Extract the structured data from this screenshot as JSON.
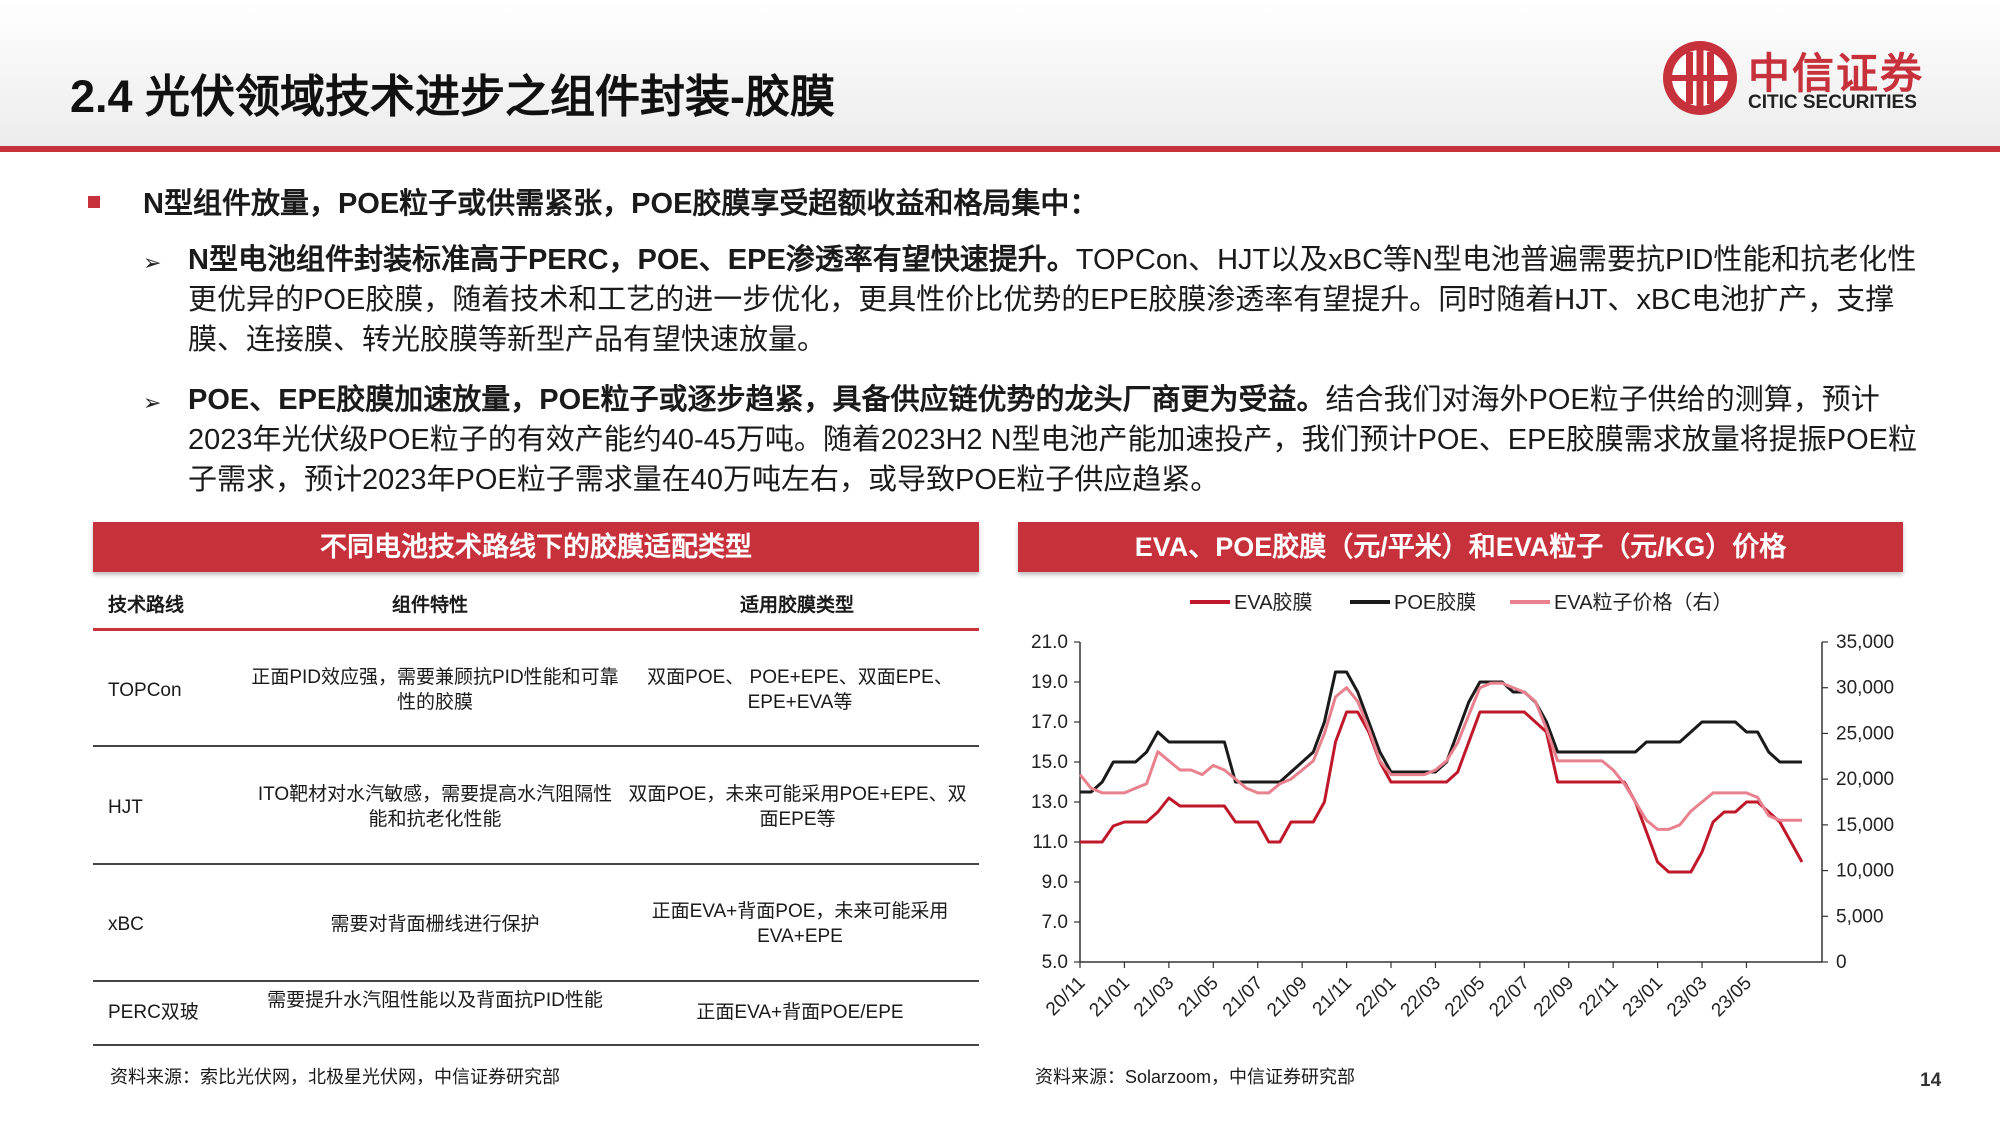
{
  "header": {
    "title": "2.4 光伏领域技术进步之组件封装-胶膜",
    "logo_cn": "中信证券",
    "logo_en": "CITIC SECURITIES"
  },
  "headline": "N型组件放量，POE粒子或供需紧张，POE胶膜享受超额收益和格局集中：",
  "points": [
    {
      "bold": "N型电池组件封装标准高于PERC，POE、EPE渗透率有望快速提升。",
      "text": "TOPCon、HJT以及xBC等N型电池普遍需要抗PID性能和抗老化性更优异的POE胶膜，随着技术和工艺的进一步优化，更具性价比优势的EPE胶膜渗透率有望提升。同时随着HJT、xBC电池扩产，支撑膜、连接膜、转光胶膜等新型产品有望快速放量。"
    },
    {
      "bold": "POE、EPE胶膜加速放量，POE粒子或逐步趋紧，具备供应链优势的龙头厂商更为受益。",
      "text": "结合我们对海外POE粒子供给的测算，预计2023年光伏级POE粒子的有效产能约40-45万吨。随着2023H2 N型电池产能加速投产，我们预计POE、EPE胶膜需求放量将提振POE粒子需求，预计2023年POE粒子需求量在40万吨左右，或导致POE粒子供应趋紧。"
    }
  ],
  "table": {
    "title": "不同电池技术路线下的胶膜适配类型",
    "headers": [
      "技术路线",
      "组件特性",
      "适用胶膜类型"
    ],
    "rows": [
      {
        "route": "TOPCon",
        "feature": "正面PID效应强，需要兼顾抗PID性能和可靠性的胶膜",
        "film": "双面POE、 POE+EPE、双面EPE、EPE+EVA等"
      },
      {
        "route": "HJT",
        "feature": "ITO靶材对水汽敏感，需要提高水汽阻隔性能和抗老化性能",
        "film": "双面POE，未来可能采用POE+EPE、双面EPE等"
      },
      {
        "route": "xBC",
        "feature": "需要对背面栅线进行保护",
        "film": "正面EVA+背面POE，未来可能采用EVA+EPE"
      },
      {
        "route": "PERC双玻",
        "feature": "需要提升水汽阻性能以及背面抗PID性能",
        "film": "正面EVA+背面POE/EPE"
      }
    ],
    "source": "资料来源：索比光伏网，北极星光伏网，中信证券研究部"
  },
  "chart_data": {
    "type": "line",
    "title": "EVA、POE胶膜（元/平米）和EVA粒子（元/KG）价格",
    "x_tick_labels": [
      "20/11",
      "21/01",
      "21/03",
      "21/05",
      "21/07",
      "21/09",
      "21/11",
      "22/01",
      "22/03",
      "22/05",
      "22/07",
      "22/09",
      "22/11",
      "23/01",
      "23/03",
      "23/05"
    ],
    "ylim": [
      5.0,
      21.0
    ],
    "y_ticks": [
      "5.0",
      "7.0",
      "9.0",
      "11.0",
      "13.0",
      "15.0",
      "17.0",
      "19.0",
      "21.0"
    ],
    "y2lim": [
      0,
      35000
    ],
    "y2_ticks": [
      "0",
      "5,000",
      "10,000",
      "15,000",
      "20,000",
      "25,000",
      "30,000",
      "35,000"
    ],
    "legend": "top",
    "grid": false,
    "x_months": [
      0,
      0.5,
      1,
      1.5,
      2,
      2.5,
      3,
      3.5,
      4,
      4.5,
      5,
      5.5,
      6,
      6.5,
      7,
      7.5,
      8,
      8.5,
      9,
      9.5,
      10,
      10.5,
      11,
      11.5,
      12,
      12.5,
      13,
      13.5,
      14,
      14.5,
      15,
      15.5,
      16,
      16.5,
      17,
      17.5,
      18,
      18.5,
      19,
      19.5,
      20,
      20.5,
      21,
      21.5,
      22,
      22.5,
      23,
      23.5,
      24,
      24.5,
      25,
      25.5,
      26,
      26.5,
      27,
      27.5,
      28,
      28.5,
      29,
      29.5,
      30,
      30.5,
      31,
      31.5,
      32,
      32.5
    ],
    "series": [
      {
        "name": "EVA胶膜",
        "axis": "left",
        "color": "#c0182b",
        "values": [
          11.0,
          11.0,
          11.0,
          11.8,
          12.0,
          12.0,
          12.0,
          12.5,
          13.2,
          12.8,
          12.8,
          12.8,
          12.8,
          12.8,
          12.0,
          12.0,
          12.0,
          11.0,
          11.0,
          12.0,
          12.0,
          12.0,
          13.0,
          16.0,
          17.5,
          17.5,
          16.5,
          15.0,
          14.0,
          14.0,
          14.0,
          14.0,
          14.0,
          14.0,
          14.5,
          16.0,
          17.5,
          17.5,
          17.5,
          17.5,
          17.5,
          17.0,
          16.5,
          14.0,
          14.0,
          14.0,
          14.0,
          14.0,
          14.0,
          14.0,
          13.0,
          11.5,
          10.0,
          9.5,
          9.5,
          9.5,
          10.5,
          12.0,
          12.5,
          12.5,
          13.0,
          13.0,
          12.5,
          12.0,
          11.0,
          10.0
        ]
      },
      {
        "name": "POE胶膜",
        "axis": "left",
        "color": "#1a1a1a",
        "values": [
          13.5,
          13.5,
          14.0,
          15.0,
          15.0,
          15.0,
          15.5,
          16.5,
          16.0,
          16.0,
          16.0,
          16.0,
          16.0,
          16.0,
          14.0,
          14.0,
          14.0,
          14.0,
          14.0,
          14.5,
          15.0,
          15.5,
          17.0,
          19.5,
          19.5,
          18.5,
          17.0,
          15.5,
          14.5,
          14.5,
          14.5,
          14.5,
          14.5,
          15.0,
          16.5,
          18.0,
          19.0,
          19.0,
          19.0,
          18.5,
          18.5,
          18.0,
          17.0,
          15.5,
          15.5,
          15.5,
          15.5,
          15.5,
          15.5,
          15.5,
          15.5,
          16.0,
          16.0,
          16.0,
          16.0,
          16.5,
          17.0,
          17.0,
          17.0,
          17.0,
          16.5,
          16.5,
          15.5,
          15.0,
          15.0,
          15.0
        ]
      },
      {
        "name": "EVA粒子价格（右）",
        "axis": "right",
        "color": "#e8808e",
        "values": [
          20500,
          19000,
          18500,
          18500,
          18500,
          19000,
          19500,
          23000,
          22000,
          21000,
          21000,
          20500,
          21500,
          21000,
          20000,
          19000,
          18500,
          18500,
          19500,
          20000,
          21000,
          22000,
          25000,
          29000,
          30000,
          28500,
          25500,
          22000,
          20500,
          20500,
          20500,
          20500,
          21000,
          22000,
          24000,
          27000,
          30000,
          30500,
          30500,
          30000,
          29500,
          28500,
          25500,
          22000,
          22000,
          22000,
          22000,
          22000,
          21000,
          19500,
          17500,
          15500,
          14500,
          14500,
          15000,
          16500,
          17500,
          18500,
          18500,
          18500,
          18500,
          18000,
          16000,
          15500,
          15500,
          15500
        ]
      }
    ]
  },
  "chart_source": "资料来源：Solarzoom，中信证券研究部",
  "page_number": "14"
}
